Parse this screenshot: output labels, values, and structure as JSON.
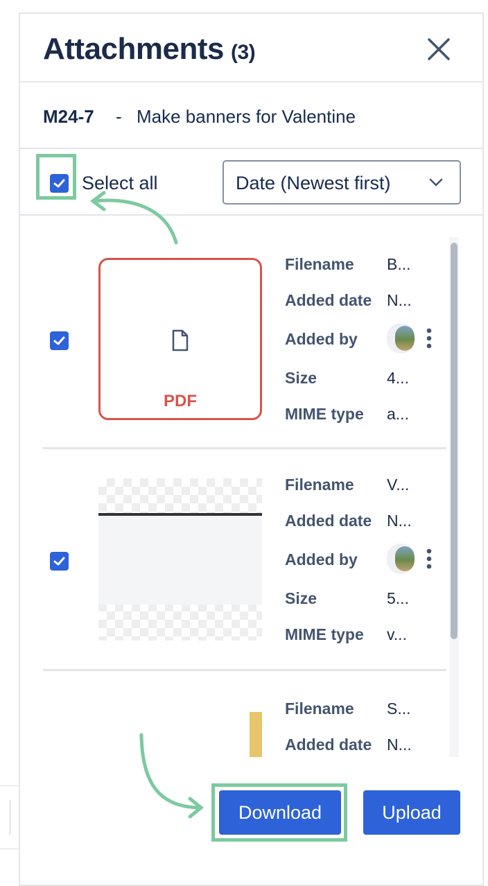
{
  "header": {
    "title": "Attachments",
    "count": "(3)"
  },
  "issue": {
    "key": "M24-7",
    "separator": "-",
    "title": "Make banners for Valentine"
  },
  "toolbar": {
    "select_all_label": "Select all",
    "select_all_checked": true,
    "sort_value": "Date (Newest first)"
  },
  "fields": {
    "filename": "Filename",
    "added_date": "Added date",
    "added_by": "Added by",
    "size": "Size",
    "mime": "MIME type"
  },
  "attachments": [
    {
      "type_label": "PDF",
      "checked": true,
      "filename": "B...",
      "added_date": "N...",
      "size": "4...",
      "mime": "a..."
    },
    {
      "checked": true,
      "filename": "V...",
      "added_date": "N...",
      "size": "5...",
      "mime": "v..."
    },
    {
      "filename": "S...",
      "added_date": "N..."
    }
  ],
  "footer": {
    "download_label": "Download",
    "upload_label": "Upload"
  },
  "colors": {
    "accent": "#2d62d9",
    "pdf": "#d9534a",
    "highlight": "#7dc9a0"
  }
}
